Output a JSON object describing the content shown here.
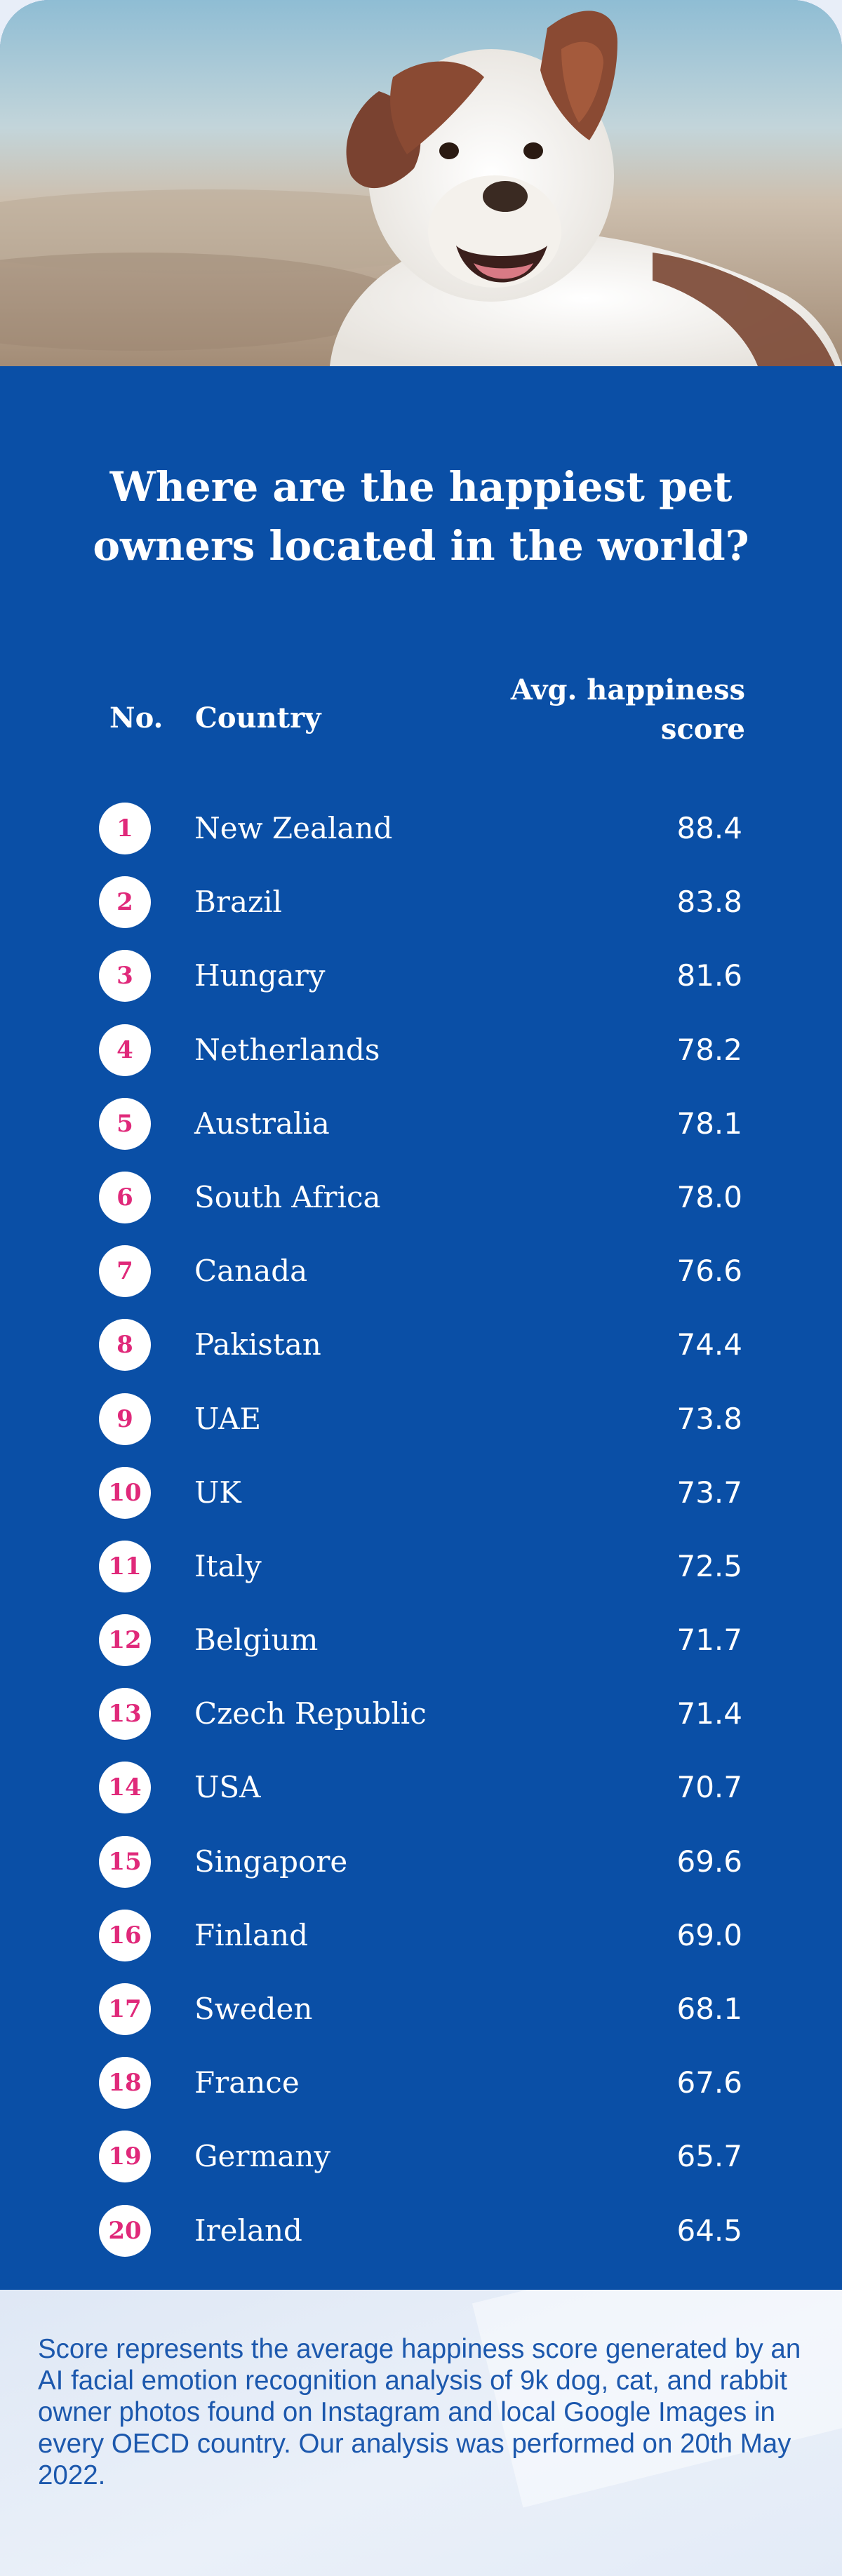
{
  "title_lines": [
    "Where are the happiest pet",
    "owners located in the world?"
  ],
  "headers": {
    "no": "No.",
    "country": "Country",
    "score_lines": [
      "Avg. happiness",
      "score"
    ]
  },
  "colors": {
    "panel_blue": "#0a4fa6",
    "badge_pink": "#e0297a",
    "footer_text": "#1c58ad"
  },
  "rows": [
    {
      "rank": "1",
      "country": "New Zealand",
      "score": "88.4"
    },
    {
      "rank": "2",
      "country": "Brazil",
      "score": "83.8"
    },
    {
      "rank": "3",
      "country": "Hungary",
      "score": "81.6"
    },
    {
      "rank": "4",
      "country": "Netherlands",
      "score": "78.2"
    },
    {
      "rank": "5",
      "country": "Australia",
      "score": "78.1"
    },
    {
      "rank": "6",
      "country": "South Africa",
      "score": "78.0"
    },
    {
      "rank": "7",
      "country": "Canada",
      "score": "76.6"
    },
    {
      "rank": "8",
      "country": "Pakistan",
      "score": "74.4"
    },
    {
      "rank": "9",
      "country": "UAE",
      "score": "73.8"
    },
    {
      "rank": "10",
      "country": "UK",
      "score": "73.7"
    },
    {
      "rank": "11",
      "country": "Italy",
      "score": "72.5"
    },
    {
      "rank": "12",
      "country": "Belgium",
      "score": "71.7"
    },
    {
      "rank": "13",
      "country": "Czech Republic",
      "score": "71.4"
    },
    {
      "rank": "14",
      "country": "USA",
      "score": "70.7"
    },
    {
      "rank": "15",
      "country": "Singapore",
      "score": "69.6"
    },
    {
      "rank": "16",
      "country": "Finland",
      "score": "69.0"
    },
    {
      "rank": "17",
      "country": "Sweden",
      "score": "68.1"
    },
    {
      "rank": "18",
      "country": "France",
      "score": "67.6"
    },
    {
      "rank": "19",
      "country": "Germany",
      "score": "65.7"
    },
    {
      "rank": "20",
      "country": "Ireland",
      "score": "64.5"
    }
  ],
  "footnote": "Score represents the average happiness score generated by an AI facial emotion recognition analysis of 9k dog, cat, and rabbit owner photos found on Instagram and local Google Images in every OECD country. Our analysis was performed on 20th May 2022.",
  "hero_image": "dog-photo"
}
